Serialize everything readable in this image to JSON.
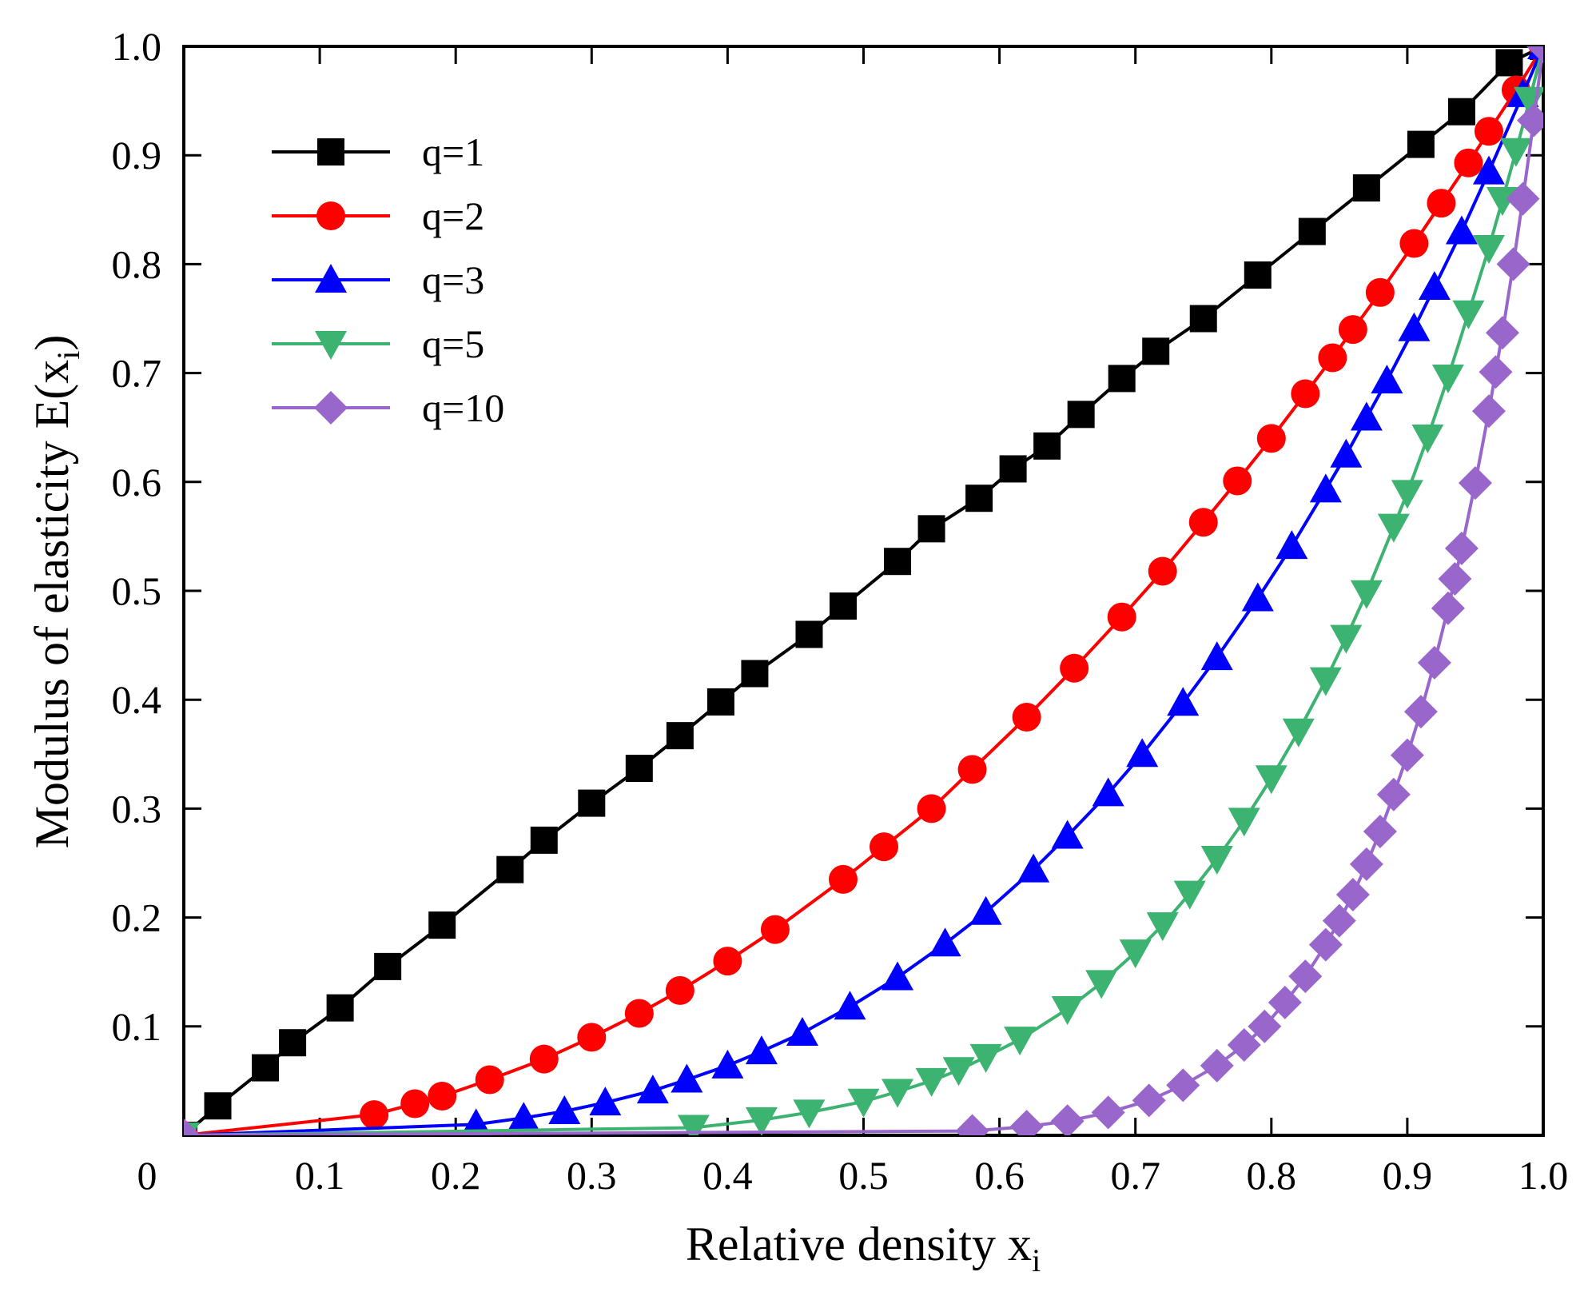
{
  "chart_data": {
    "type": "line",
    "title": "",
    "xlabel": "Relative density x",
    "xlabel_sub": "i",
    "ylabel": "Modulus of elasticity E(x",
    "ylabel_sub": "i",
    "ylabel_close": ")",
    "xlim": [
      0,
      1.0
    ],
    "ylim": [
      0,
      1.0
    ],
    "x_ticks": [
      0.1,
      0.2,
      0.3,
      0.4,
      0.5,
      0.6,
      0.7,
      0.8,
      0.9,
      1.0
    ],
    "x_tick_labels": [
      "0.1",
      "0.2",
      "0.3",
      "0.4",
      "0.5",
      "0.6",
      "0.7",
      "0.8",
      "0.9",
      "1.0"
    ],
    "y_ticks": [
      0.1,
      0.2,
      0.3,
      0.4,
      0.5,
      0.6,
      0.7,
      0.8,
      0.9,
      1.0
    ],
    "y_tick_labels": [
      "0.1",
      "0.2",
      "0.3",
      "0.4",
      "0.5",
      "0.6",
      "0.7",
      "0.8",
      "0.9",
      "1.0"
    ],
    "origin_label": "0",
    "grid": false,
    "legend_position": "top-left",
    "series": [
      {
        "name": "q=1",
        "color": "#000000",
        "marker": "square",
        "x": [
          0.0,
          0.025,
          0.06,
          0.08,
          0.115,
          0.15,
          0.19,
          0.24,
          0.265,
          0.3,
          0.335,
          0.365,
          0.395,
          0.42,
          0.46,
          0.485,
          0.525,
          0.55,
          0.585,
          0.61,
          0.635,
          0.66,
          0.69,
          0.715,
          0.75,
          0.79,
          0.83,
          0.87,
          0.91,
          0.94,
          0.975,
          1.0
        ],
        "y": [
          0.0,
          0.027,
          0.062,
          0.085,
          0.117,
          0.155,
          0.193,
          0.244,
          0.271,
          0.305,
          0.337,
          0.367,
          0.398,
          0.424,
          0.46,
          0.486,
          0.527,
          0.557,
          0.585,
          0.612,
          0.633,
          0.662,
          0.695,
          0.72,
          0.75,
          0.79,
          0.83,
          0.87,
          0.91,
          0.94,
          0.985,
          1.0
        ]
      },
      {
        "name": "q=2",
        "color": "#ff0000",
        "marker": "circle",
        "x": [
          0.0,
          0.14,
          0.17,
          0.19,
          0.225,
          0.265,
          0.3,
          0.335,
          0.365,
          0.4,
          0.435,
          0.485,
          0.515,
          0.55,
          0.58,
          0.62,
          0.655,
          0.69,
          0.72,
          0.75,
          0.775,
          0.8,
          0.825,
          0.845,
          0.86,
          0.88,
          0.905,
          0.925,
          0.945,
          0.96,
          0.98,
          1.0
        ],
        "y": [
          0.0,
          0.019,
          0.029,
          0.036,
          0.051,
          0.07,
          0.09,
          0.112,
          0.133,
          0.16,
          0.189,
          0.235,
          0.265,
          0.3,
          0.336,
          0.384,
          0.429,
          0.476,
          0.518,
          0.563,
          0.601,
          0.64,
          0.681,
          0.714,
          0.74,
          0.774,
          0.819,
          0.856,
          0.893,
          0.922,
          0.96,
          1.0
        ]
      },
      {
        "name": "q=3",
        "color": "#0000ff",
        "marker": "triangle-up",
        "x": [
          0.0,
          0.215,
          0.25,
          0.28,
          0.31,
          0.345,
          0.37,
          0.4,
          0.425,
          0.455,
          0.49,
          0.525,
          0.56,
          0.59,
          0.625,
          0.65,
          0.68,
          0.705,
          0.735,
          0.76,
          0.79,
          0.815,
          0.84,
          0.855,
          0.87,
          0.885,
          0.905,
          0.92,
          0.94,
          0.96,
          0.985,
          1.0
        ],
        "y": [
          0.0,
          0.01,
          0.016,
          0.022,
          0.03,
          0.041,
          0.051,
          0.064,
          0.077,
          0.094,
          0.118,
          0.145,
          0.176,
          0.205,
          0.244,
          0.275,
          0.314,
          0.35,
          0.397,
          0.439,
          0.493,
          0.541,
          0.593,
          0.625,
          0.659,
          0.693,
          0.741,
          0.779,
          0.83,
          0.885,
          0.956,
          1.0
        ]
      },
      {
        "name": "q=5",
        "color": "#3cb371",
        "marker": "triangle-down",
        "x": [
          0.0,
          0.375,
          0.425,
          0.46,
          0.5,
          0.525,
          0.55,
          0.57,
          0.59,
          0.615,
          0.65,
          0.675,
          0.7,
          0.72,
          0.74,
          0.76,
          0.78,
          0.8,
          0.82,
          0.84,
          0.855,
          0.87,
          0.89,
          0.9,
          0.915,
          0.93,
          0.945,
          0.96,
          0.97,
          0.98,
          0.99,
          1.0
        ],
        "y": [
          0.0,
          0.007,
          0.014,
          0.021,
          0.031,
          0.04,
          0.05,
          0.06,
          0.072,
          0.088,
          0.116,
          0.14,
          0.168,
          0.193,
          0.222,
          0.254,
          0.289,
          0.328,
          0.371,
          0.418,
          0.457,
          0.498,
          0.559,
          0.59,
          0.641,
          0.696,
          0.755,
          0.815,
          0.859,
          0.904,
          0.951,
          1.0
        ]
      },
      {
        "name": "q=10",
        "color": "#9966cc",
        "marker": "diamond",
        "x": [
          0.0,
          0.58,
          0.62,
          0.65,
          0.68,
          0.71,
          0.735,
          0.76,
          0.78,
          0.795,
          0.81,
          0.825,
          0.84,
          0.85,
          0.86,
          0.87,
          0.88,
          0.89,
          0.9,
          0.91,
          0.92,
          0.93,
          0.935,
          0.94,
          0.95,
          0.96,
          0.965,
          0.97,
          0.978,
          0.985,
          0.993,
          1.0
        ],
        "y": [
          0.0,
          0.004,
          0.008,
          0.013,
          0.021,
          0.032,
          0.046,
          0.064,
          0.083,
          0.1,
          0.122,
          0.146,
          0.175,
          0.197,
          0.221,
          0.249,
          0.279,
          0.313,
          0.349,
          0.389,
          0.434,
          0.484,
          0.511,
          0.539,
          0.599,
          0.665,
          0.701,
          0.737,
          0.8,
          0.86,
          0.932,
          1.0
        ]
      }
    ]
  }
}
